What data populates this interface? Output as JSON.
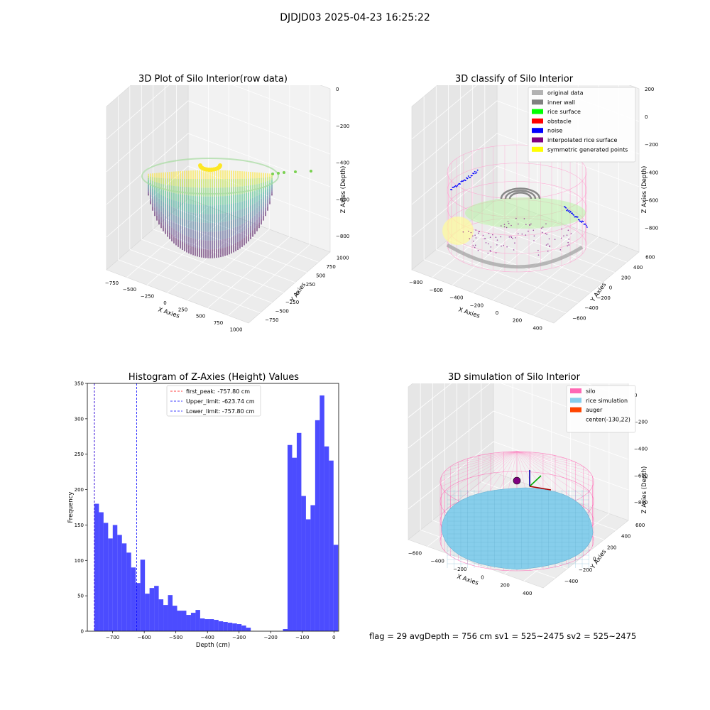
{
  "suptitle": "DJDJD03 2025-04-23 16:25:22",
  "footer": "flag = 29  avgDepth = 756 cm  sv1 = 525~2475  sv2 = 525~2475",
  "panels": {
    "raw": {
      "title": "3D Plot of Silo Interior(row data)",
      "xlabel": "X Axies",
      "ylabel": "Y Axies",
      "zlabel": "Z Axies (Depth)",
      "xticks": [
        "−750",
        "−500",
        "−250",
        "0",
        "250",
        "500",
        "750",
        "1000"
      ],
      "yticks": [
        "1000",
        "750",
        "500",
        "250",
        "0",
        "−250",
        "−500",
        "−750"
      ],
      "zticks": [
        "0",
        "−200",
        "−400",
        "−600",
        "−800"
      ]
    },
    "classify": {
      "title": "3D classify of Silo Interior",
      "xlabel": "X Axies",
      "ylabel": "Y Axies",
      "zlabel": "Z Axies (Depth)",
      "xticks": [
        "−800",
        "−600",
        "−400",
        "−200",
        "0",
        "200",
        "400"
      ],
      "yticks": [
        "600",
        "400",
        "200",
        "0",
        "−200",
        "−400",
        "−600"
      ],
      "zticks": [
        "200",
        "0",
        "−200",
        "−400",
        "−600",
        "−800"
      ],
      "legend": [
        {
          "label": "original data",
          "color": "#b3b3b3"
        },
        {
          "label": "inner wall",
          "color": "#808080"
        },
        {
          "label": "rice surface",
          "color": "#00ff00"
        },
        {
          "label": "obstacle",
          "color": "#ff0000"
        },
        {
          "label": "noise",
          "color": "#0000ff"
        },
        {
          "label": "interpolated rice surface",
          "color": "#800080"
        },
        {
          "label": "symmetric generated points",
          "color": "#ffff00"
        }
      ]
    },
    "simulation": {
      "title": "3D simulation of Silo Interior",
      "xlabel": "X Axies",
      "ylabel": "Y Axies",
      "zlabel": "Z Axies (Depth)",
      "xticks": [
        "−600",
        "−400",
        "−200",
        "0",
        "200",
        "400"
      ],
      "yticks": [
        "600",
        "400",
        "200",
        "0",
        "−200",
        "−400"
      ],
      "zticks": [
        "200",
        "0",
        "−200",
        "−400",
        "−600",
        "−800"
      ],
      "legend": [
        {
          "label": "silo",
          "color": "#ff69b4"
        },
        {
          "label": "rice simulation",
          "color": "#87ceeb"
        },
        {
          "label": "auger",
          "color": "#ff4500"
        },
        {
          "label": "center(-130,22)",
          "color": ""
        }
      ]
    }
  },
  "chart_data": [
    {
      "type": "scatter",
      "title": "3D Plot of Silo Interior(row data)",
      "xlabel": "X Axies",
      "ylabel": "Y Axies",
      "zlabel": "Z Axies (Depth)",
      "xlim": [
        -750,
        1000
      ],
      "ylim": [
        -750,
        1000
      ],
      "zlim": [
        -900,
        0
      ]
    },
    {
      "type": "scatter",
      "title": "3D classify of Silo Interior",
      "xlabel": "X Axies",
      "ylabel": "Y Axies",
      "zlabel": "Z Axies (Depth)",
      "xlim": [
        -800,
        400
      ],
      "ylim": [
        -600,
        600
      ],
      "zlim": [
        -900,
        200
      ],
      "series": [
        {
          "name": "original data"
        },
        {
          "name": "inner wall"
        },
        {
          "name": "rice surface"
        },
        {
          "name": "obstacle"
        },
        {
          "name": "noise"
        },
        {
          "name": "interpolated rice surface"
        },
        {
          "name": "symmetric generated points"
        }
      ]
    },
    {
      "type": "bar",
      "title": "Histogram of Z-Axies (Height) Values",
      "xlabel": "Depth (cm)",
      "ylabel": "Frequency",
      "xlim": [
        -780,
        15
      ],
      "ylim": [
        0,
        350
      ],
      "xticks": [
        -700,
        -600,
        -500,
        -400,
        -300,
        -200,
        -100,
        0
      ],
      "yticks": [
        0,
        50,
        100,
        150,
        200,
        250,
        300,
        350
      ],
      "bin_start": -757.8,
      "bin_width": 14.55,
      "values": [
        180,
        168,
        153,
        131,
        150,
        136,
        124,
        111,
        90,
        68,
        101,
        53,
        61,
        64,
        45,
        37,
        51,
        36,
        29,
        29,
        23,
        26,
        30,
        18,
        17,
        17,
        16,
        14,
        13,
        12,
        11,
        10,
        8,
        5,
        0,
        0,
        0,
        0,
        0,
        0,
        0,
        3,
        263,
        245,
        280,
        191,
        158,
        178,
        298,
        333,
        261,
        241,
        122
      ],
      "color": "#0000ff",
      "vlines": [
        {
          "label": "first_peak: -757.80 cm",
          "value": -757.8,
          "color": "#ff0000"
        },
        {
          "label": "Upper_limit: -623.74 cm",
          "value": -623.74,
          "color": "#0000ff"
        },
        {
          "label": "Lower_limit: -757.80 cm",
          "value": -757.8,
          "color": "#0000ff"
        }
      ]
    },
    {
      "type": "scatter",
      "title": "3D simulation of Silo Interior",
      "xlabel": "X Axies",
      "ylabel": "Y Axies",
      "zlabel": "Z Axies (Depth)",
      "xlim": [
        -700,
        500
      ],
      "ylim": [
        -500,
        700
      ],
      "zlim": [
        -900,
        300
      ],
      "series": [
        {
          "name": "silo"
        },
        {
          "name": "rice simulation"
        },
        {
          "name": "auger"
        },
        {
          "name": "center(-130,22)"
        }
      ]
    }
  ]
}
